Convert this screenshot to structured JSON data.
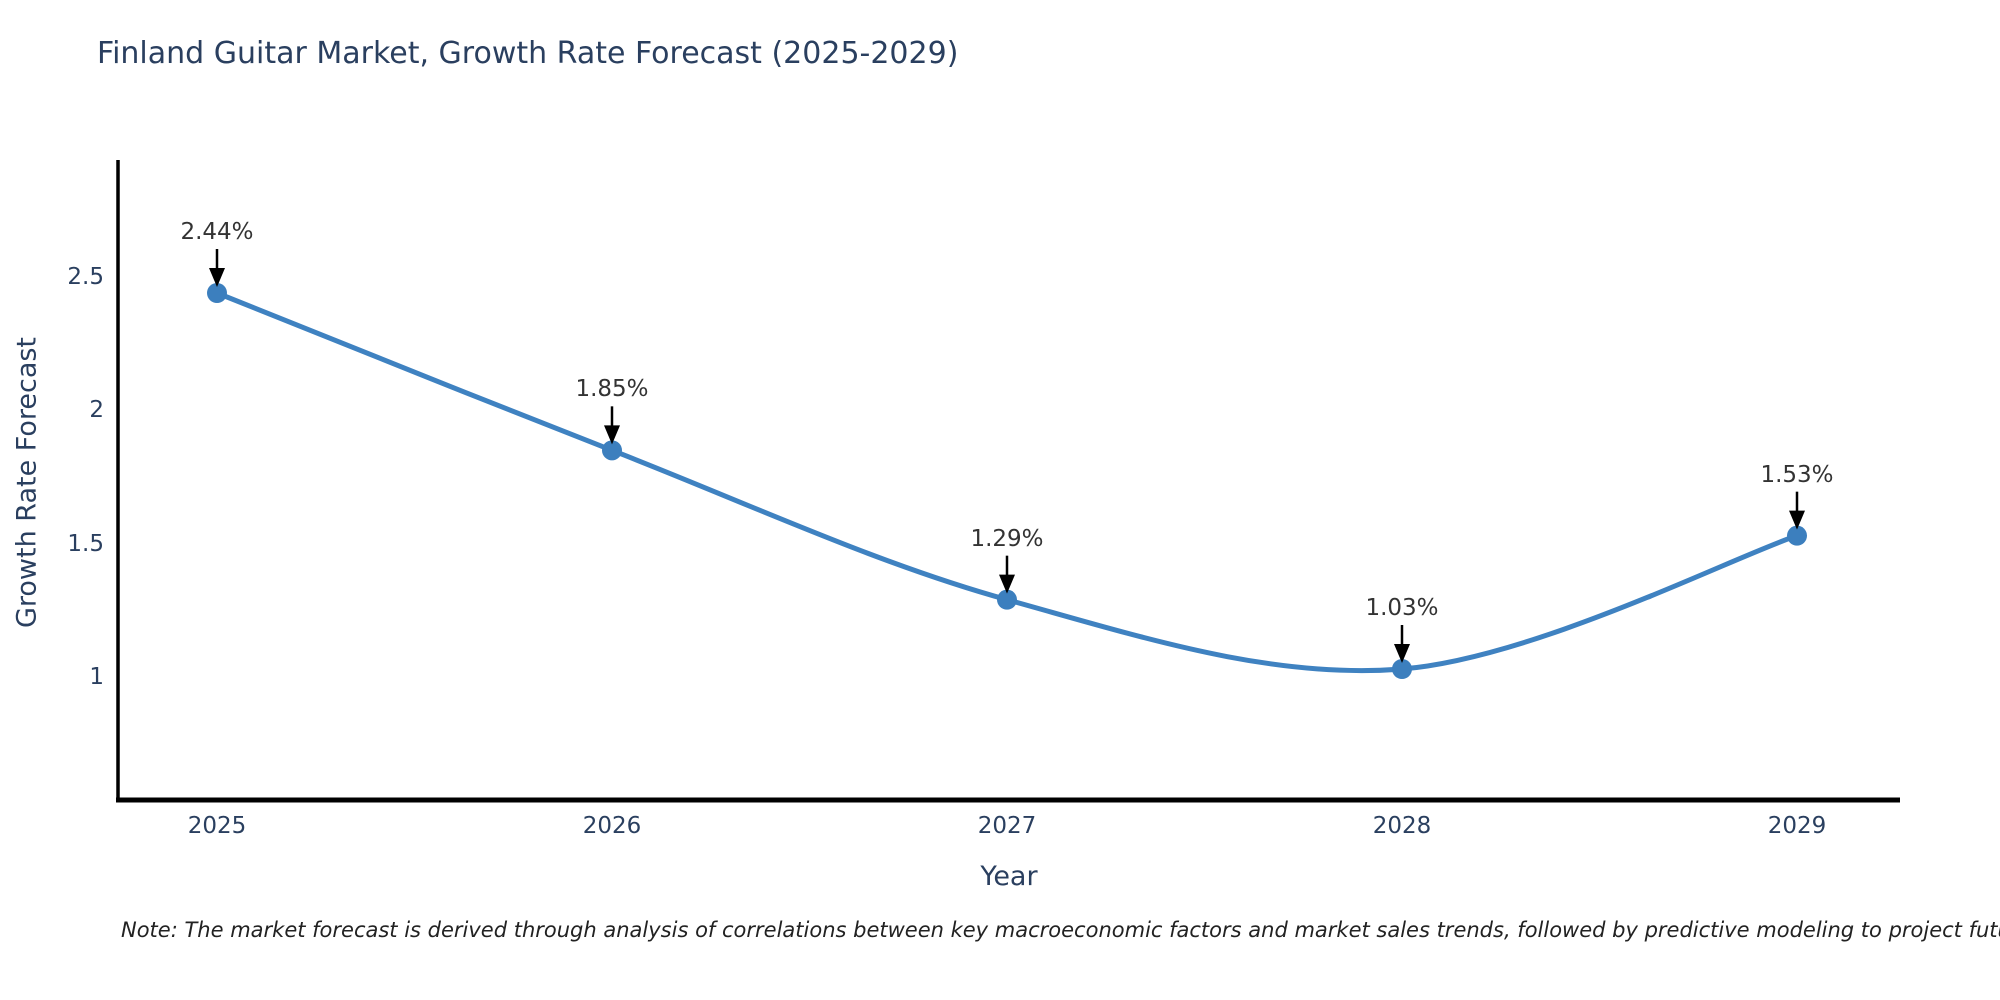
{
  "title": "Finland Guitar Market, Growth Rate Forecast (2025-2029)",
  "note": "Note: The market forecast is derived through analysis of correlations between key macroeconomic factors and market sales trends, followed by predictive modeling to project future sales",
  "colors": {
    "background": "#ffffff",
    "title_text": "#2a3f5f",
    "tick_text": "#2a3f5f",
    "axis_line": "#000000",
    "series_line": "#3f82c1",
    "marker_fill": "#3c7fbe",
    "annotation_text": "#333333",
    "arrow": "#000000",
    "note_text": "#222222"
  },
  "chart_data": {
    "type": "line",
    "title": "Finland Guitar Market, Growth Rate Forecast (2025-2029)",
    "xlabel": "Year",
    "ylabel": "Growth Rate Forecast",
    "x": [
      2025,
      2026,
      2027,
      2028,
      2029
    ],
    "xtick_labels": [
      "2025",
      "2026",
      "2027",
      "2028",
      "2029"
    ],
    "series": [
      {
        "name": "Growth Rate Forecast",
        "values": [
          2.44,
          1.85,
          1.29,
          1.03,
          1.53
        ],
        "point_labels": [
          "2.44%",
          "1.85%",
          "1.29%",
          "1.03%",
          "1.53%"
        ]
      }
    ],
    "yticks": [
      1,
      1.5,
      2,
      2.5
    ],
    "ytick_labels": [
      "1",
      "1.5",
      "2",
      "2.5"
    ],
    "ylim": [
      0.54,
      2.94
    ],
    "xlim_padding_years": 0.25,
    "grid": false,
    "legend_position": "none",
    "line_shape": "spline",
    "annotations": "value labels with downward arrows above each point"
  }
}
